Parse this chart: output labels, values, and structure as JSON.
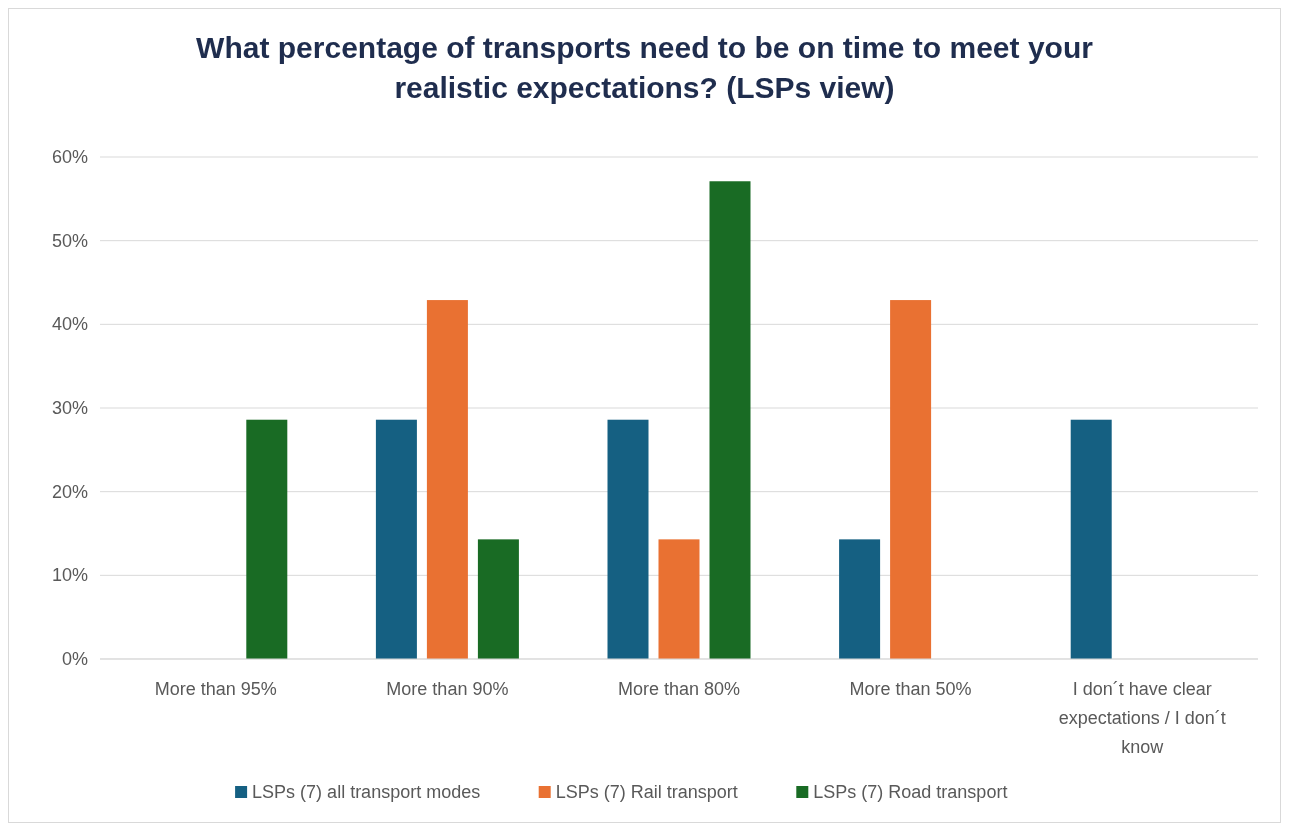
{
  "chart_data": {
    "type": "bar",
    "title": "What percentage of transports need to be on time to meet your realistic expectations? (LSPs view)",
    "categories": [
      "More than 95%",
      "More than 90%",
      "More than 80%",
      "More than 50%",
      "I don´t have clear expectations / I don´t know"
    ],
    "series": [
      {
        "name": "LSPs (7) all transport modes",
        "color": "#156082",
        "values": [
          0,
          28.6,
          28.6,
          14.3,
          28.6
        ]
      },
      {
        "name": "LSPs (7) Rail transport",
        "color": "#e97132",
        "values": [
          0,
          42.9,
          14.3,
          42.9,
          0
        ]
      },
      {
        "name": "LSPs (7) Road transport",
        "color": "#196b24",
        "values": [
          28.6,
          14.3,
          57.1,
          0,
          0
        ]
      }
    ],
    "ylim": [
      0,
      60
    ],
    "yticks": [
      {
        "value": 0,
        "label": "0%"
      },
      {
        "value": 10,
        "label": "10%"
      },
      {
        "value": 20,
        "label": "20%"
      },
      {
        "value": 30,
        "label": "30%"
      },
      {
        "value": 40,
        "label": "40%"
      },
      {
        "value": 50,
        "label": "50%"
      },
      {
        "value": 60,
        "label": "60%"
      }
    ],
    "grid": "y",
    "legend": "bottom"
  }
}
